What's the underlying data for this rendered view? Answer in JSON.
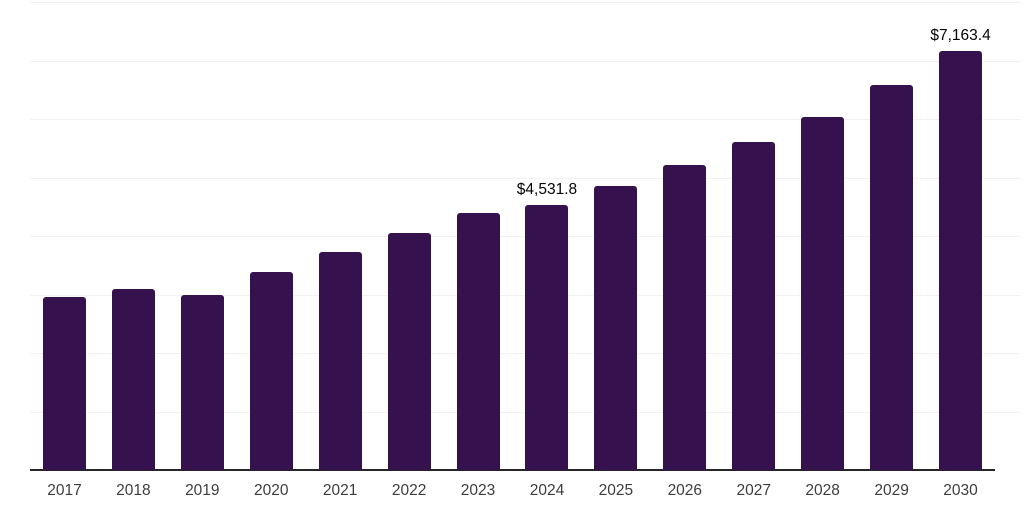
{
  "chart_data": {
    "type": "bar",
    "title": "",
    "xlabel": "",
    "ylabel": "",
    "categories": [
      "2017",
      "2018",
      "2019",
      "2020",
      "2021",
      "2022",
      "2023",
      "2024",
      "2025",
      "2026",
      "2027",
      "2028",
      "2029",
      "2030"
    ],
    "values": [
      2960,
      3090,
      2990,
      3390,
      3730,
      4050,
      4390,
      4531.8,
      4860,
      5210,
      5610,
      6030,
      6580,
      7163.4
    ],
    "value_labels": [
      {
        "index": 7,
        "text": "$4,531.8"
      },
      {
        "index": 13,
        "text": "$7,163.4"
      }
    ],
    "ylim": [
      0,
      8000
    ],
    "ytick_interval": 1000,
    "grid": "horizontal",
    "y_axis_tick_labels_visible": false,
    "legend": "none",
    "colors": {
      "bar": "#35114d",
      "gridline": "#f2f2f2",
      "axis_line": "#262626",
      "tick_label": "#3d3d3d",
      "value_label": "#040404",
      "background": "#ffffff"
    }
  }
}
